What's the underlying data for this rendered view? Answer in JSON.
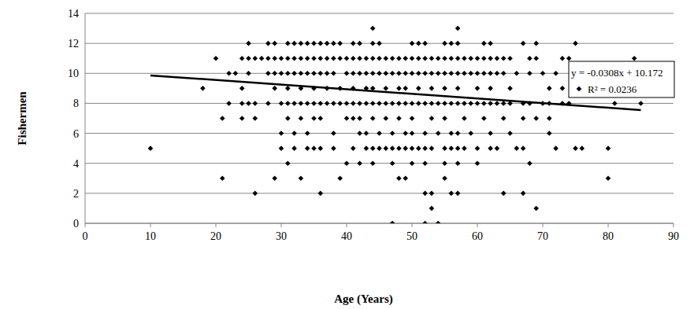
{
  "chart_data": {
    "type": "scatter",
    "x_label": "Age (Years)",
    "y_label": "Fishermen",
    "marker": "diamond",
    "color": "#000000",
    "grid": true,
    "xlim": [
      0,
      90
    ],
    "xticks": [
      0,
      10,
      20,
      30,
      40,
      50,
      60,
      70,
      80,
      90
    ],
    "ylim": [
      0,
      14
    ],
    "yticks": [
      0,
      2,
      4,
      6,
      8,
      10,
      12,
      14
    ],
    "x": [
      44,
      57,
      25,
      28,
      29,
      31,
      32,
      33,
      34,
      35,
      36,
      37,
      38,
      39,
      41,
      42,
      44,
      45,
      50,
      51,
      52,
      55,
      56,
      57,
      61,
      62,
      67,
      69,
      75,
      20,
      24,
      25,
      26,
      27,
      28,
      29,
      30,
      31,
      32,
      33,
      34,
      35,
      36,
      37,
      38,
      39,
      40,
      41,
      42,
      43,
      44,
      45,
      46,
      47,
      48,
      49,
      50,
      51,
      52,
      53,
      54,
      55,
      56,
      57,
      58,
      59,
      60,
      61,
      62,
      63,
      64,
      65,
      68,
      69,
      73,
      74,
      84,
      22,
      23,
      25,
      28,
      29,
      30,
      31,
      32,
      33,
      34,
      35,
      36,
      37,
      38,
      40,
      41,
      42,
      43,
      44,
      45,
      46,
      47,
      48,
      49,
      50,
      51,
      52,
      53,
      54,
      55,
      56,
      57,
      58,
      59,
      60,
      61,
      62,
      63,
      64,
      66,
      68,
      70,
      72,
      18,
      24,
      29,
      31,
      33,
      35,
      37,
      39,
      41,
      43,
      44,
      46,
      48,
      49,
      51,
      53,
      55,
      57,
      60,
      62,
      65,
      71,
      73,
      22,
      24,
      25,
      26,
      28,
      30,
      31,
      32,
      33,
      34,
      35,
      36,
      37,
      38,
      39,
      40,
      41,
      42,
      43,
      44,
      45,
      46,
      47,
      48,
      49,
      50,
      51,
      52,
      53,
      54,
      55,
      56,
      57,
      58,
      59,
      60,
      61,
      62,
      63,
      64,
      65,
      67,
      68,
      70,
      71,
      73,
      74,
      81,
      85,
      21,
      24,
      26,
      31,
      33,
      35,
      36,
      40,
      41,
      42,
      44,
      46,
      48,
      50,
      53,
      55,
      58,
      61,
      64,
      67,
      69,
      71,
      30,
      32,
      34,
      38,
      42,
      43,
      45,
      47,
      49,
      50,
      52,
      54,
      56,
      57,
      59,
      62,
      65,
      71,
      10,
      30,
      32,
      34,
      35,
      36,
      38,
      41,
      43,
      44,
      45,
      46,
      47,
      48,
      49,
      50,
      51,
      52,
      53,
      55,
      56,
      57,
      58,
      60,
      62,
      63,
      66,
      67,
      72,
      75,
      76,
      80,
      31,
      40,
      42,
      44,
      47,
      50,
      52,
      55,
      57,
      60,
      68,
      21,
      29,
      33,
      39,
      48,
      49,
      55,
      80,
      26,
      36,
      52,
      53,
      56,
      57,
      64,
      67,
      53,
      69,
      47,
      52,
      54
    ],
    "values": [
      13,
      13,
      12,
      12,
      12,
      12,
      12,
      12,
      12,
      12,
      12,
      12,
      12,
      12,
      12,
      12,
      12,
      12,
      12,
      12,
      12,
      12,
      12,
      12,
      12,
      12,
      12,
      12,
      12,
      11,
      11,
      11,
      11,
      11,
      11,
      11,
      11,
      11,
      11,
      11,
      11,
      11,
      11,
      11,
      11,
      11,
      11,
      11,
      11,
      11,
      11,
      11,
      11,
      11,
      11,
      11,
      11,
      11,
      11,
      11,
      11,
      11,
      11,
      11,
      11,
      11,
      11,
      11,
      11,
      11,
      11,
      11,
      11,
      11,
      11,
      11,
      11,
      10,
      10,
      10,
      10,
      10,
      10,
      10,
      10,
      10,
      10,
      10,
      10,
      10,
      10,
      10,
      10,
      10,
      10,
      10,
      10,
      10,
      10,
      10,
      10,
      10,
      10,
      10,
      10,
      10,
      10,
      10,
      10,
      10,
      10,
      10,
      10,
      10,
      10,
      10,
      10,
      10,
      10,
      10,
      9,
      9,
      9,
      9,
      9,
      9,
      9,
      9,
      9,
      9,
      9,
      9,
      9,
      9,
      9,
      9,
      9,
      9,
      9,
      9,
      9,
      9,
      9,
      8,
      8,
      8,
      8,
      8,
      8,
      8,
      8,
      8,
      8,
      8,
      8,
      8,
      8,
      8,
      8,
      8,
      8,
      8,
      8,
      8,
      8,
      8,
      8,
      8,
      8,
      8,
      8,
      8,
      8,
      8,
      8,
      8,
      8,
      8,
      8,
      8,
      8,
      8,
      8,
      8,
      8,
      8,
      8,
      8,
      8,
      8,
      8,
      8,
      7,
      7,
      7,
      7,
      7,
      7,
      7,
      7,
      7,
      7,
      7,
      7,
      7,
      7,
      7,
      7,
      7,
      7,
      7,
      7,
      7,
      7,
      6,
      6,
      6,
      6,
      6,
      6,
      6,
      6,
      6,
      6,
      6,
      6,
      6,
      6,
      6,
      6,
      6,
      6,
      5,
      5,
      5,
      5,
      5,
      5,
      5,
      5,
      5,
      5,
      5,
      5,
      5,
      5,
      5,
      5,
      5,
      5,
      5,
      5,
      5,
      5,
      5,
      5,
      5,
      5,
      5,
      5,
      5,
      5,
      5,
      5,
      4,
      4,
      4,
      4,
      4,
      4,
      4,
      4,
      4,
      4,
      4,
      3,
      3,
      3,
      3,
      3,
      3,
      3,
      3,
      2,
      2,
      2,
      2,
      2,
      2,
      2,
      2,
      1,
      1,
      0,
      0,
      0
    ],
    "trendline": {
      "x": [
        10,
        85
      ],
      "values": [
        9.864,
        7.554
      ]
    },
    "annotations": [
      "y = -0.0308x + 10.172",
      "R² = 0.0236"
    ]
  }
}
